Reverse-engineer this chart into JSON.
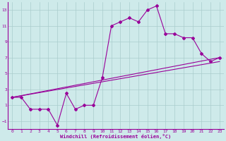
{
  "xlabel": "Windchill (Refroidissement éolien,°C)",
  "bg_color": "#ceeaea",
  "grid_color": "#aacccc",
  "line_color": "#990099",
  "spine_color": "#990099",
  "xlim": [
    -0.5,
    23.5
  ],
  "ylim": [
    -2.0,
    14.0
  ],
  "yticks": [
    -1,
    1,
    3,
    5,
    7,
    9,
    11,
    13
  ],
  "xticks": [
    0,
    1,
    2,
    3,
    4,
    5,
    6,
    7,
    8,
    9,
    10,
    11,
    12,
    13,
    14,
    15,
    16,
    17,
    18,
    19,
    20,
    21,
    22,
    23
  ],
  "main_x": [
    0,
    1,
    2,
    3,
    4,
    5,
    6,
    7,
    8,
    9,
    10,
    11,
    12,
    13,
    14,
    15,
    16,
    17,
    18,
    19,
    20,
    21,
    22,
    23
  ],
  "main_y": [
    2,
    2,
    0.5,
    0.5,
    0.5,
    -1.5,
    2.5,
    0.5,
    1,
    1,
    4.5,
    11,
    11.5,
    12,
    11.5,
    13,
    13.5,
    10,
    10,
    9.5,
    9.5,
    7.5,
    6.5,
    7
  ],
  "line2_x": [
    0,
    23
  ],
  "line2_y": [
    2.0,
    7.0
  ],
  "line3_x": [
    0,
    23
  ],
  "line3_y": [
    2.0,
    6.5
  ],
  "marker_size": 2.0,
  "line_width": 0.8,
  "tick_fontsize": 4.5,
  "xlabel_fontsize": 5.0
}
